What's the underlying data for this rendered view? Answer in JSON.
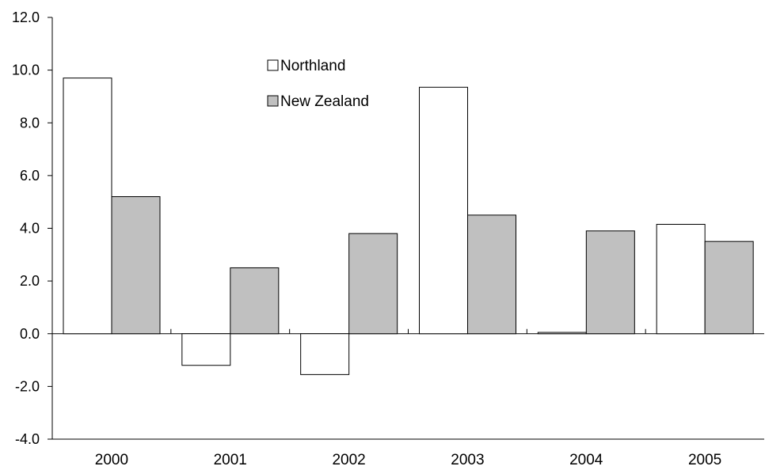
{
  "chart_data": {
    "type": "bar",
    "categories": [
      "2000",
      "2001",
      "2002",
      "2003",
      "2004",
      "2005"
    ],
    "series": [
      {
        "name": "Northland",
        "values": [
          9.7,
          -1.2,
          -1.55,
          9.35,
          0.05,
          4.15
        ],
        "color": "#ffffff"
      },
      {
        "name": "New Zealand",
        "values": [
          5.2,
          2.5,
          3.8,
          4.5,
          3.9,
          3.5
        ],
        "color": "#c0c0c0"
      }
    ],
    "yticks": [
      "12.0",
      "10.0",
      "8.0",
      "6.0",
      "4.0",
      "2.0",
      "0.0",
      "-2.0",
      "-4.0"
    ],
    "ylim": [
      -4,
      12
    ],
    "title": "",
    "xlabel": "",
    "ylabel": "",
    "grid": false,
    "legend_position": "upper-middle"
  }
}
